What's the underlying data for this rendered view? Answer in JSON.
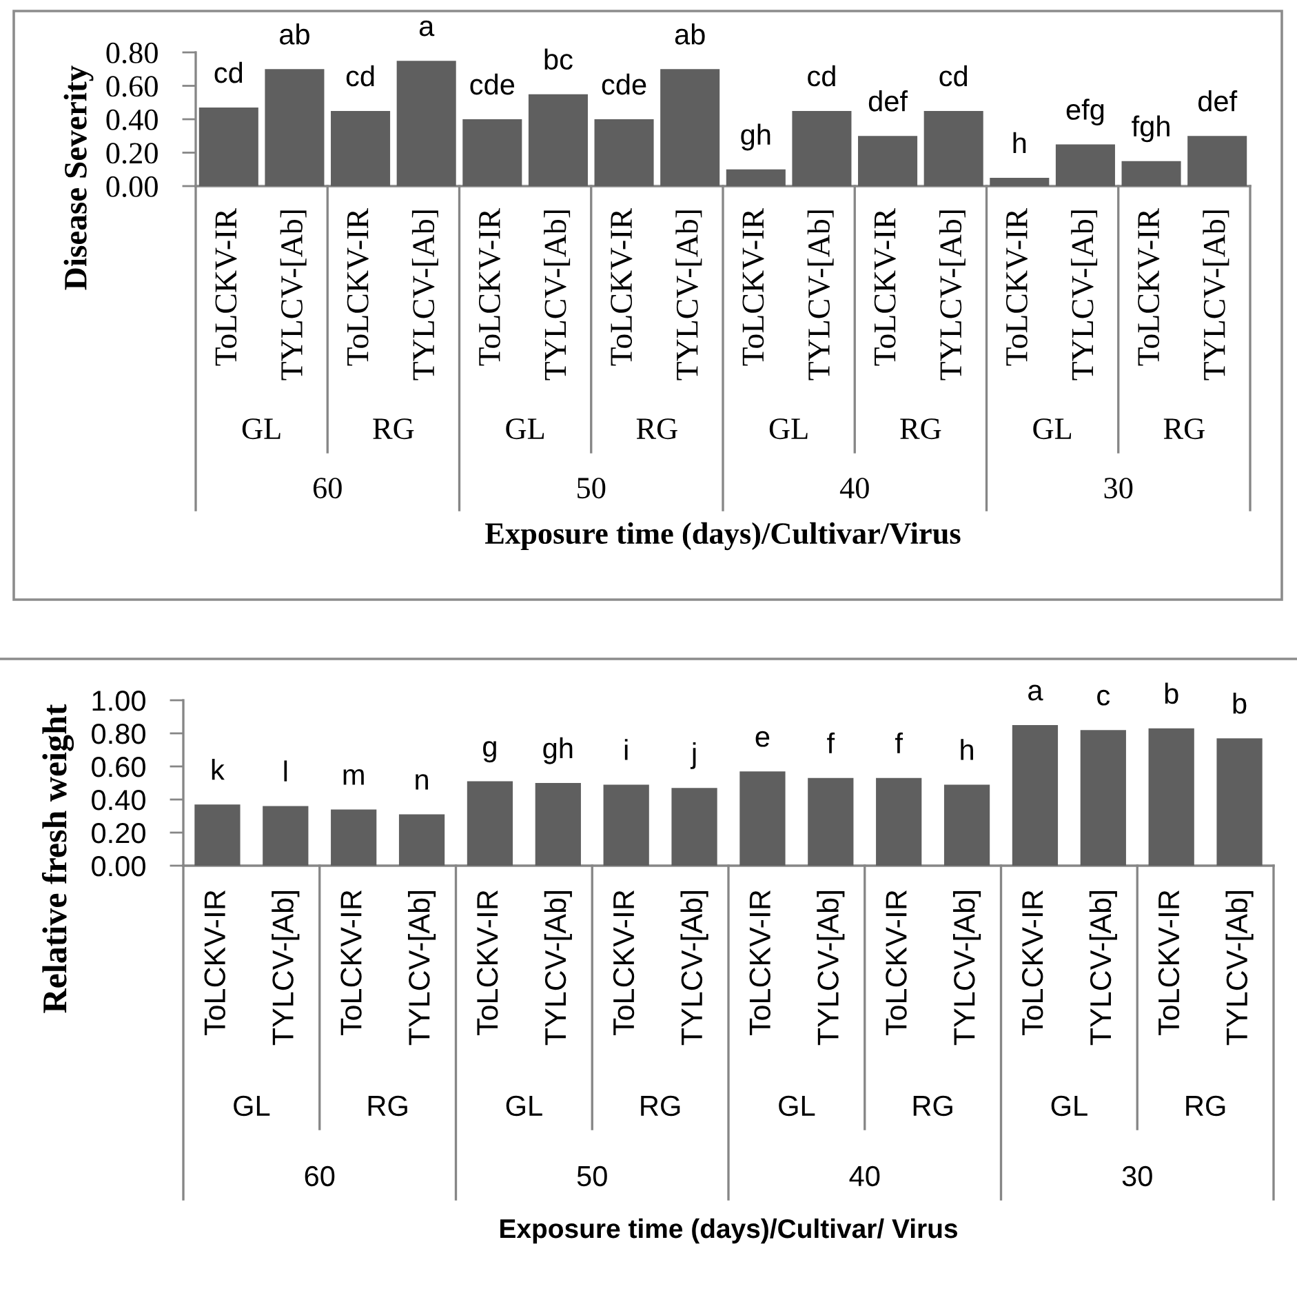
{
  "chart_data": [
    {
      "type": "bar",
      "ylabel": "Disease Severity",
      "xlabel": "Exposure time (days)/Cultivar/Virus",
      "categories": [
        "ToLCKV-IR",
        "TYLCV-[Ab]",
        "ToLCKV-IR",
        "TYLCV-[Ab]",
        "ToLCKV-IR",
        "TYLCV-[Ab]",
        "ToLCKV-IR",
        "TYLCV-[Ab]",
        "ToLCKV-IR",
        "TYLCV-[Ab]",
        "ToLCKV-IR",
        "TYLCV-[Ab]",
        "ToLCKV-IR",
        "TYLCV-[Ab]",
        "ToLCKV-IR",
        "TYLCV-[Ab]"
      ],
      "values": [
        0.47,
        0.7,
        0.45,
        0.75,
        0.4,
        0.55,
        0.4,
        0.7,
        0.1,
        0.45,
        0.3,
        0.45,
        0.05,
        0.25,
        0.15,
        0.3
      ],
      "value_labels": [
        "cd",
        "ab",
        "cd",
        "a",
        "cde",
        "bc",
        "cde",
        "ab",
        "gh",
        "cd",
        "def",
        "cd",
        "h",
        "efg",
        "fgh",
        "def"
      ],
      "color": "#5f5f5f",
      "ylim": [
        0,
        0.8
      ],
      "yticks": [
        {
          "value": 0,
          "label": "0.00"
        },
        {
          "value": 0.2,
          "label": "0.20"
        },
        {
          "value": 0.4,
          "label": "0.40"
        },
        {
          "value": 0.6,
          "label": "0.60"
        },
        {
          "value": 0.8,
          "label": "0.80"
        }
      ],
      "annotations": [
        "GL",
        "RG",
        "GL",
        "RG",
        "GL",
        "RG",
        "GL",
        "RG",
        "60",
        "50",
        "40",
        "30"
      ]
    },
    {
      "type": "bar",
      "ylabel": "Relative fresh weight",
      "xlabel": "Exposure time (days)/Cultivar/ Virus",
      "categories": [
        "ToLCKV-IR",
        "TYLCV-[Ab]",
        "ToLCKV-IR",
        "TYLCV-[Ab]",
        "ToLCKV-IR",
        "TYLCV-[Ab]",
        "ToLCKV-IR",
        "TYLCV-[Ab]",
        "ToLCKV-IR",
        "TYLCV-[Ab]",
        "ToLCKV-IR",
        "TYLCV-[Ab]",
        "ToLCKV-IR",
        "TYLCV-[Ab]",
        "ToLCKV-IR",
        "TYLCV-[Ab]"
      ],
      "values": [
        0.37,
        0.36,
        0.34,
        0.31,
        0.51,
        0.5,
        0.49,
        0.47,
        0.57,
        0.53,
        0.53,
        0.49,
        0.85,
        0.82,
        0.83,
        0.77
      ],
      "value_labels": [
        "k",
        "l",
        "m",
        "n",
        "g",
        "gh",
        "i",
        "j",
        "e",
        "f",
        "f",
        "h",
        "a",
        "c",
        "b",
        "b"
      ],
      "color": "#5f5f5f",
      "ylim": [
        0,
        1.0
      ],
      "yticks": [
        {
          "value": 0,
          "label": "0.00"
        },
        {
          "value": 0.2,
          "label": "0.20"
        },
        {
          "value": 0.4,
          "label": "0.40"
        },
        {
          "value": 0.6,
          "label": "0.60"
        },
        {
          "value": 0.8,
          "label": "0.80"
        },
        {
          "value": 1.0,
          "label": "1.00"
        }
      ],
      "annotations": [
        "GL",
        "RG",
        "GL",
        "RG",
        "GL",
        "RG",
        "GL",
        "RG",
        "60",
        "50",
        "40",
        "30"
      ]
    }
  ]
}
